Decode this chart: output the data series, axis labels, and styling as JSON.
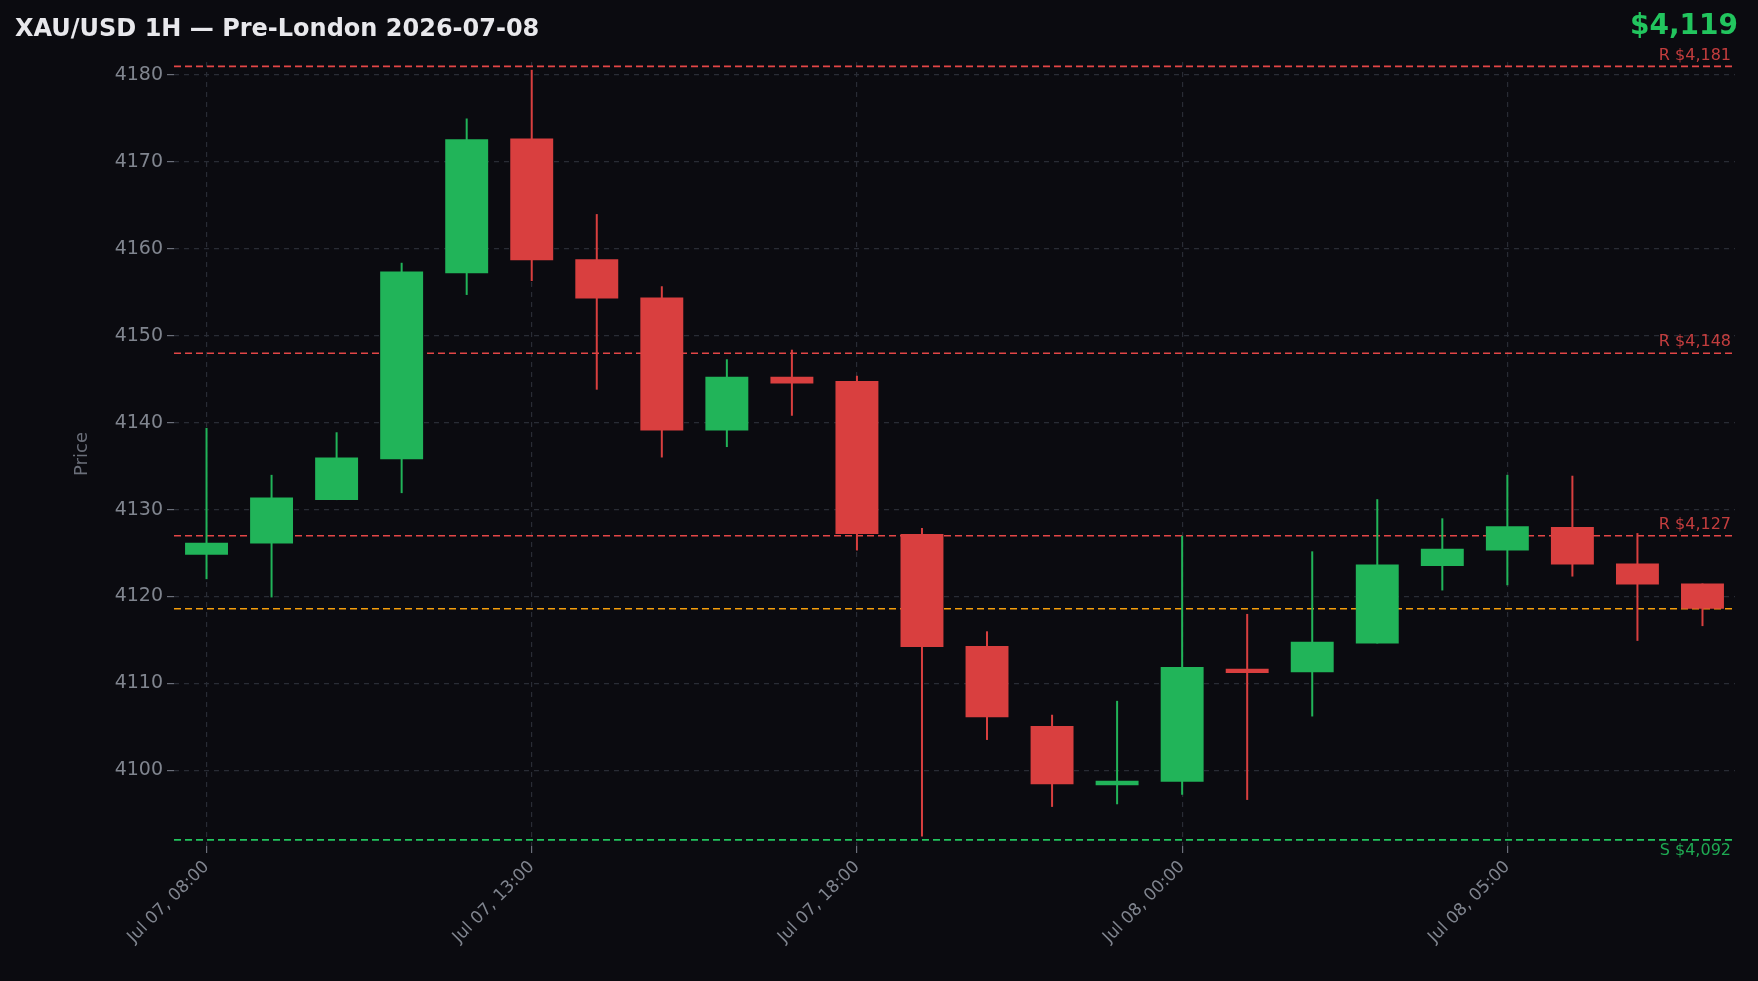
{
  "chart_data": {
    "type": "candlestick",
    "title": "XAU/USD 1H — Pre-London 2026-07-08",
    "ylabel": "Price",
    "annotations": [
      "$4,119"
    ],
    "categories": [
      "Jul 07, 08:00",
      null,
      null,
      null,
      null,
      "Jul 07, 13:00",
      null,
      null,
      null,
      null,
      "Jul 07, 18:00",
      null,
      null,
      null,
      null,
      "Jul 08, 00:00",
      null,
      null,
      null,
      null,
      "Jul 08, 05:00",
      null,
      null,
      null
    ],
    "ohlc": [
      [
        4124.8,
        4139.4,
        4122.0,
        4126.2
      ],
      [
        4126.1,
        4134.0,
        4119.9,
        4131.4
      ],
      [
        4131.1,
        4138.9,
        4131.1,
        4136.0
      ],
      [
        4135.8,
        4158.4,
        4131.9,
        4157.4
      ],
      [
        4157.2,
        4175.0,
        4154.7,
        4172.6
      ],
      [
        4172.7,
        4180.6,
        4156.3,
        4158.7
      ],
      [
        4158.8,
        4164.0,
        4143.8,
        4154.3
      ],
      [
        4154.4,
        4155.7,
        4136.0,
        4139.1
      ],
      [
        4139.1,
        4147.3,
        4137.2,
        4145.3
      ],
      [
        4145.3,
        4148.4,
        4140.8,
        4144.5
      ],
      [
        4144.8,
        4145.4,
        4125.3,
        4127.2
      ],
      [
        4127.2,
        4127.9,
        4092.4,
        4114.2
      ],
      [
        4114.3,
        4116.0,
        4103.5,
        4106.1
      ],
      [
        4105.1,
        4106.4,
        4095.8,
        4098.4
      ],
      [
        4098.3,
        4108.0,
        4096.1,
        4098.8
      ],
      [
        4098.7,
        4127.0,
        4097.2,
        4111.9
      ],
      [
        4111.7,
        4118.0,
        4096.6,
        4111.2
      ],
      [
        4111.3,
        4125.2,
        4106.2,
        4114.8
      ],
      [
        4114.6,
        4131.2,
        4114.6,
        4123.7
      ],
      [
        4123.5,
        4129.0,
        4120.7,
        4125.5
      ],
      [
        4125.3,
        4134.0,
        4121.3,
        4128.1
      ],
      [
        4128.0,
        4133.9,
        4122.3,
        4123.7
      ],
      [
        4123.8,
        4127.3,
        4114.9,
        4121.4
      ],
      [
        4121.5,
        4121.5,
        4116.6,
        4118.6
      ]
    ],
    "colors": [
      "#21b459",
      "#21b459",
      "#21b459",
      "#21b459",
      "#21b459",
      "#d93f3f",
      "#d93f3f",
      "#d93f3f",
      "#21b459",
      "#d93f3f",
      "#d93f3f",
      "#d93f3f",
      "#d93f3f",
      "#d93f3f",
      "#21b459",
      "#21b459",
      "#d93f3f",
      "#21b459",
      "#21b459",
      "#21b459",
      "#21b459",
      "#d93f3f",
      "#d93f3f",
      "#d93f3f"
    ],
    "ylim": [
      4091.3,
      4181.5
    ],
    "yticks": [
      4100,
      4110,
      4120,
      4130,
      4140,
      4150,
      4160,
      4170,
      4180
    ],
    "grid": true,
    "ref_lines": [
      {
        "axis": "y",
        "value": 4181,
        "label": "R $4,181",
        "color": "#e34646",
        "line_style": "dashed"
      },
      {
        "axis": "y",
        "value": 4148,
        "label": "R $4,148",
        "color": "#e34646",
        "line_style": "dashed"
      },
      {
        "axis": "y",
        "value": 4127,
        "label": "R $4,127",
        "color": "#e34646",
        "line_style": "dashed"
      },
      {
        "axis": "y",
        "value": 4092,
        "label": "S $4,092",
        "color": "#22c55e",
        "line_style": "dashed"
      },
      {
        "axis": "y",
        "value": 4118.6,
        "color": "#f59e0b",
        "line_style": "dashed"
      }
    ]
  }
}
